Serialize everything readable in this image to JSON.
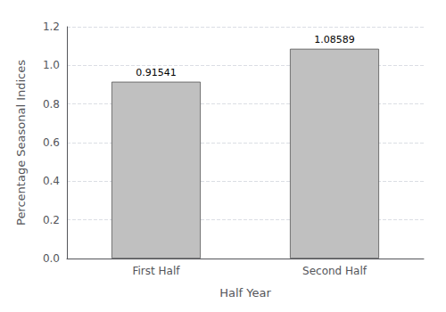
{
  "chart_data": {
    "type": "bar",
    "xlabel": "Half Year",
    "ylabel": "Percentage Seasonal Indices",
    "categories": [
      "First Half",
      "Second Half"
    ],
    "values": [
      0.91541,
      1.08589
    ],
    "color": "#c0c0c0",
    "ylim": [
      0.0,
      1.2
    ],
    "yticks": [
      {
        "value": 0,
        "label": "0.0"
      },
      0.2,
      0.4,
      0.6,
      0.8,
      {
        "value": 1,
        "label": "1.0"
      },
      1.2
    ],
    "grid": true,
    "data_labels": true
  }
}
